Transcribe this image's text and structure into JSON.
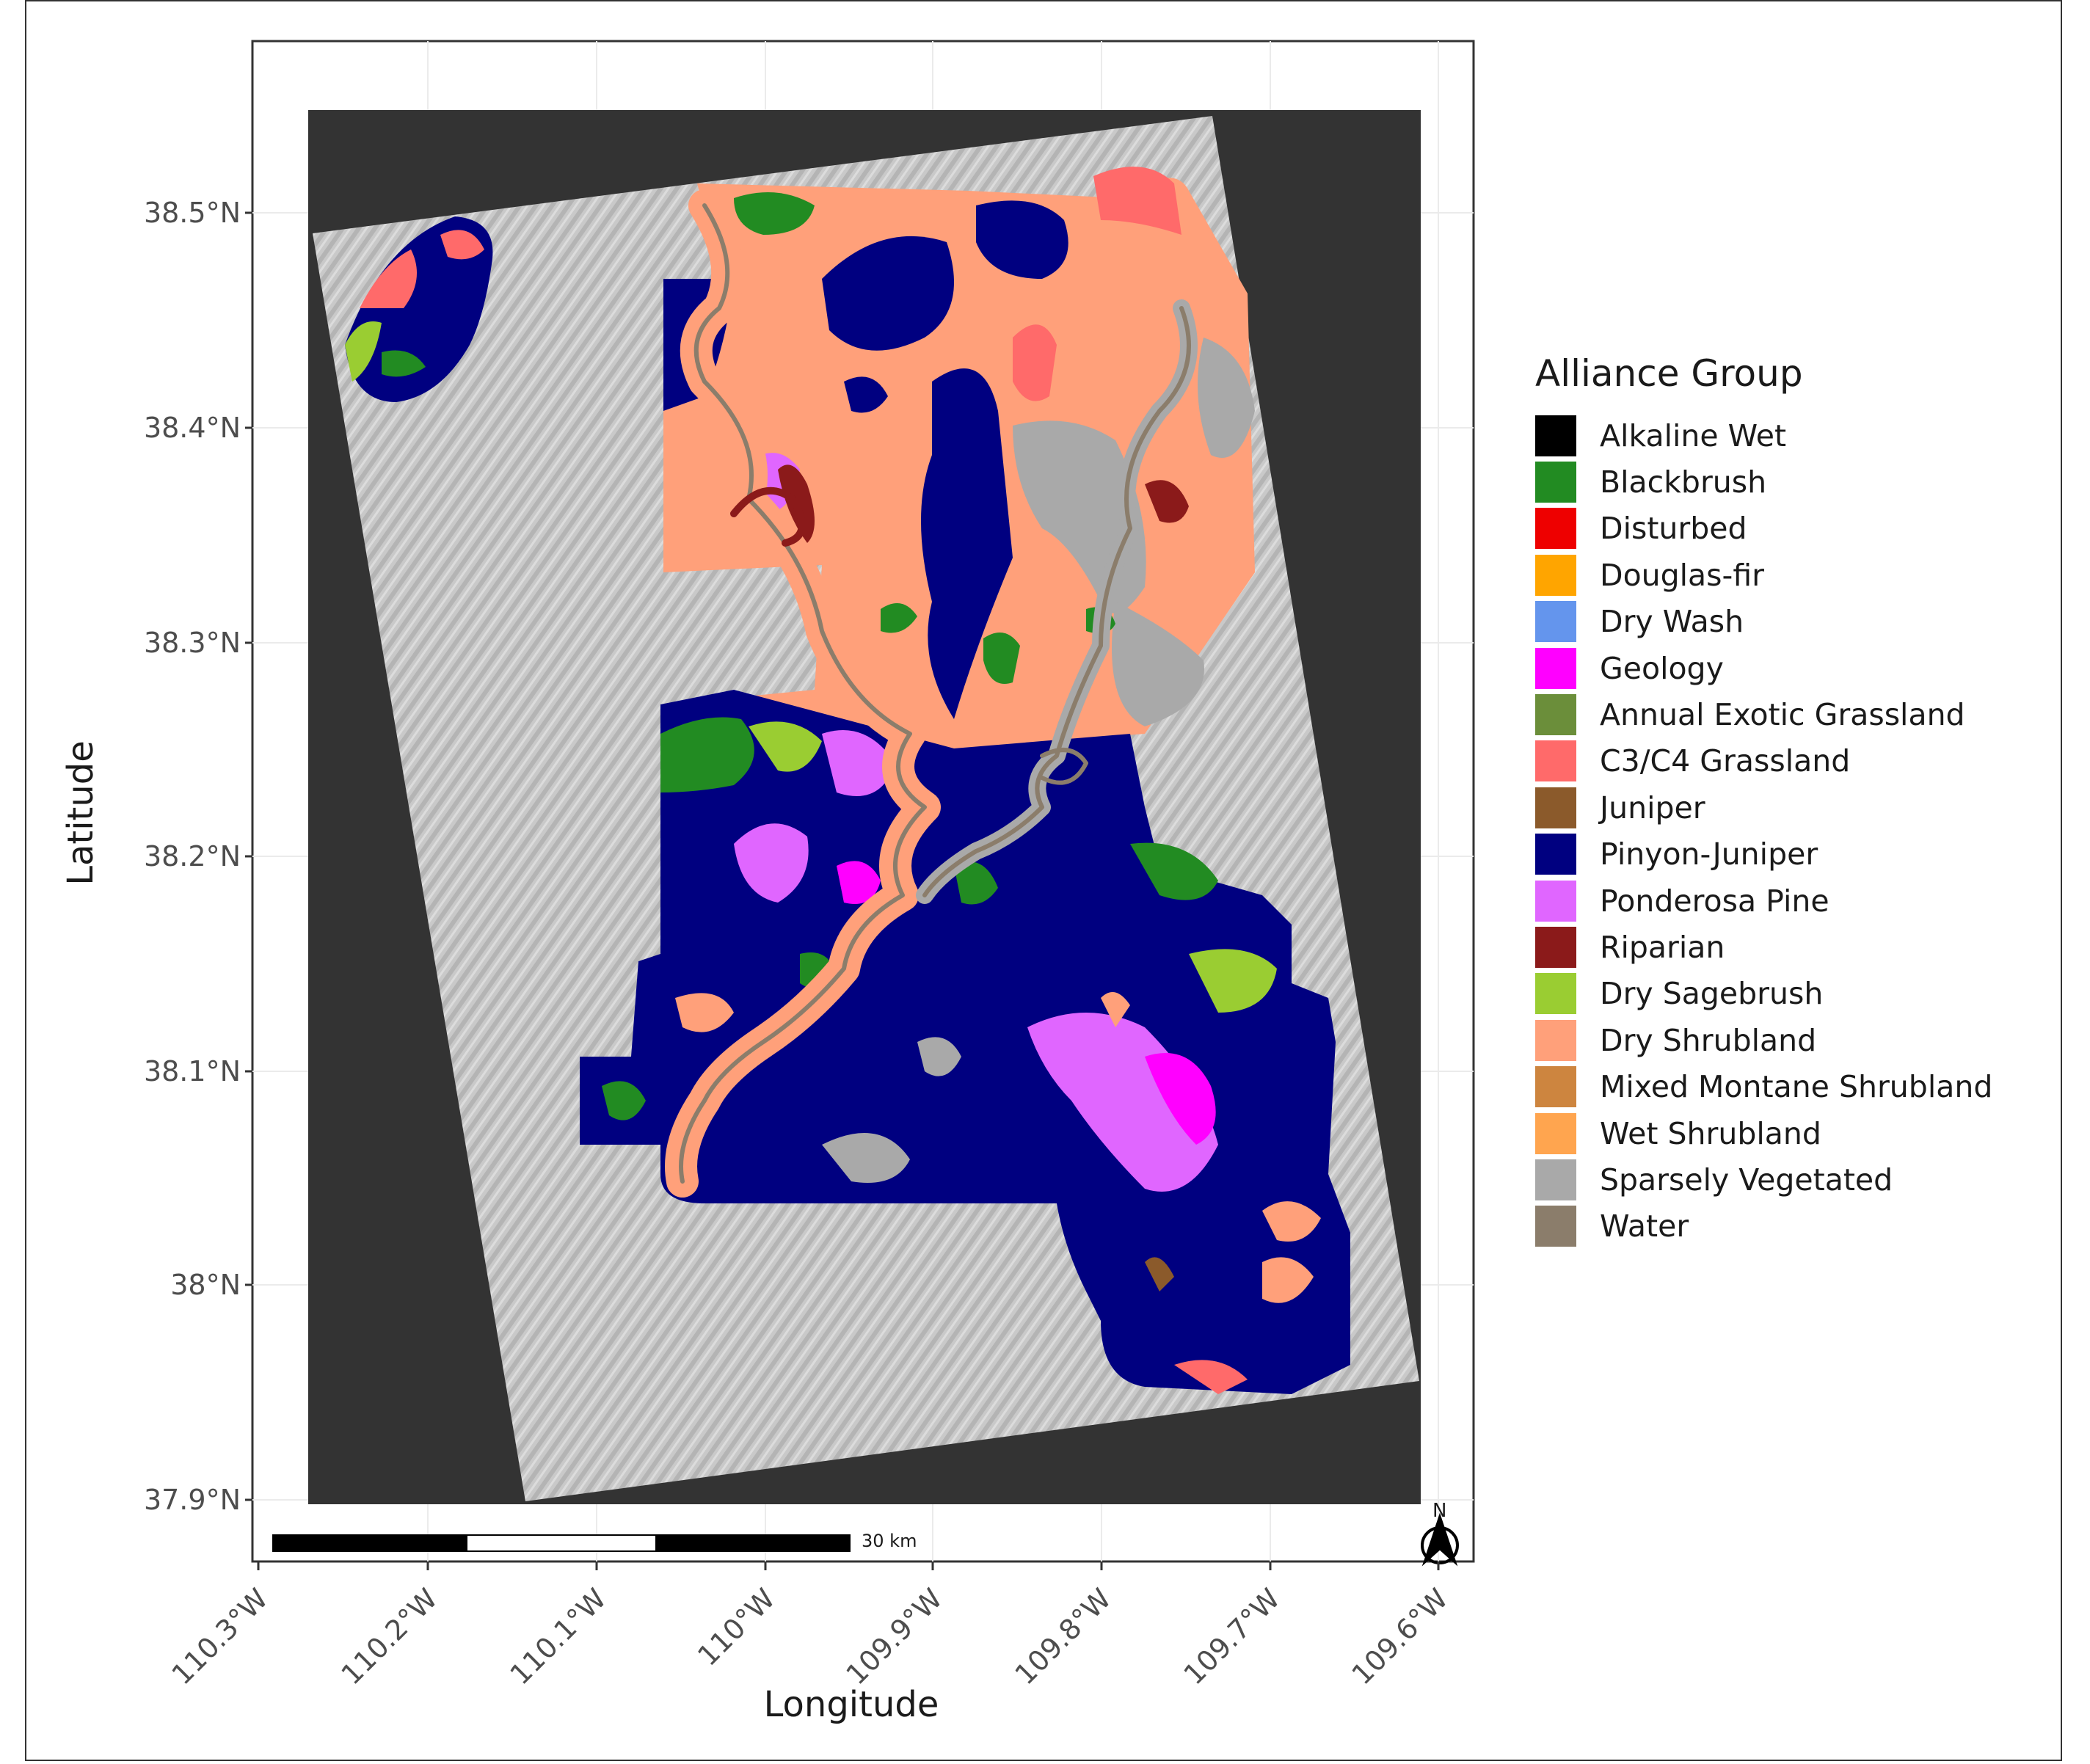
{
  "map": {
    "axis_x_title": "Longitude",
    "axis_y_title": "Latitude",
    "lat_ticks": [
      "38.5°N",
      "38.4°N",
      "38.3°N",
      "38.2°N",
      "38.1°N",
      "38°N",
      "37.9°N"
    ],
    "lon_ticks": [
      "110.3°W",
      "110.2°W",
      "110.1°W",
      "110°W",
      "109.9°W",
      "109.8°W",
      "109.7°W",
      "109.6°W"
    ],
    "scale_bar_label": "30 km",
    "north_arrow_label": "N",
    "background_color": "#333333",
    "hillshade_color": "#c8c8c8"
  },
  "legend": {
    "title": "Alliance Group",
    "items": [
      {
        "label": "Alkaline Wet",
        "color": "#000000"
      },
      {
        "label": "Blackbrush",
        "color": "#228B22"
      },
      {
        "label": "Disturbed",
        "color": "#EE0000"
      },
      {
        "label": "Douglas-fir",
        "color": "#FFA500"
      },
      {
        "label": "Dry Wash",
        "color": "#6495ED"
      },
      {
        "label": "Geology",
        "color": "#FF00FF"
      },
      {
        "label": "Annual Exotic Grassland",
        "color": "#6B8E3A"
      },
      {
        "label": "C3/C4 Grassland",
        "color": "#FF6A6A"
      },
      {
        "label": "Juniper",
        "color": "#8B5A2B"
      },
      {
        "label": "Pinyon-Juniper",
        "color": "#000080"
      },
      {
        "label": "Ponderosa Pine",
        "color": "#E066FF"
      },
      {
        "label": "Riparian",
        "color": "#8B1A1A"
      },
      {
        "label": "Dry Sagebrush",
        "color": "#9ACD32"
      },
      {
        "label": "Dry Shrubland",
        "color": "#FFA07A"
      },
      {
        "label": "Mixed Montane Shrubland",
        "color": "#CD853F"
      },
      {
        "label": "Wet Shrubland",
        "color": "#FFA54F"
      },
      {
        "label": "Sparsely Vegetated",
        "color": "#A9A9A9"
      },
      {
        "label": "Water",
        "color": "#8B7D6B"
      }
    ]
  }
}
